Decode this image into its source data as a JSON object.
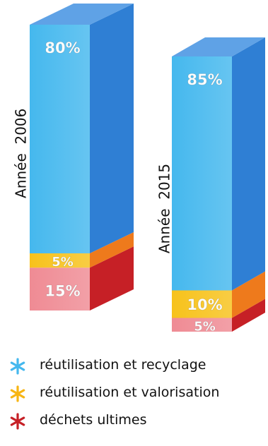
{
  "chart_data": {
    "type": "bar",
    "stacked": true,
    "style": "3d-columns",
    "categories": [
      "Année  2006",
      "Année  2015"
    ],
    "series": [
      {
        "name": "réutilisation  et recyclage",
        "color": "#45b8ee",
        "side": "#2f7fd4",
        "top": "#5fa2e6",
        "values": [
          80,
          85
        ],
        "labels": [
          "80%",
          "85%"
        ]
      },
      {
        "name": "réutilisation et valorisation",
        "color": "#f7c21b",
        "side": "#ee7a1c",
        "top": "#f7c21b",
        "values": [
          5,
          10
        ],
        "labels": [
          "5%",
          "10%"
        ]
      },
      {
        "name": "déchets ultimes",
        "color": "#ef8b94",
        "side": "#c62026",
        "top": "#ef8b94",
        "values": [
          15,
          5
        ],
        "labels": [
          "15%",
          "5%"
        ]
      }
    ],
    "legend_position": "bottom",
    "grid": false
  }
}
